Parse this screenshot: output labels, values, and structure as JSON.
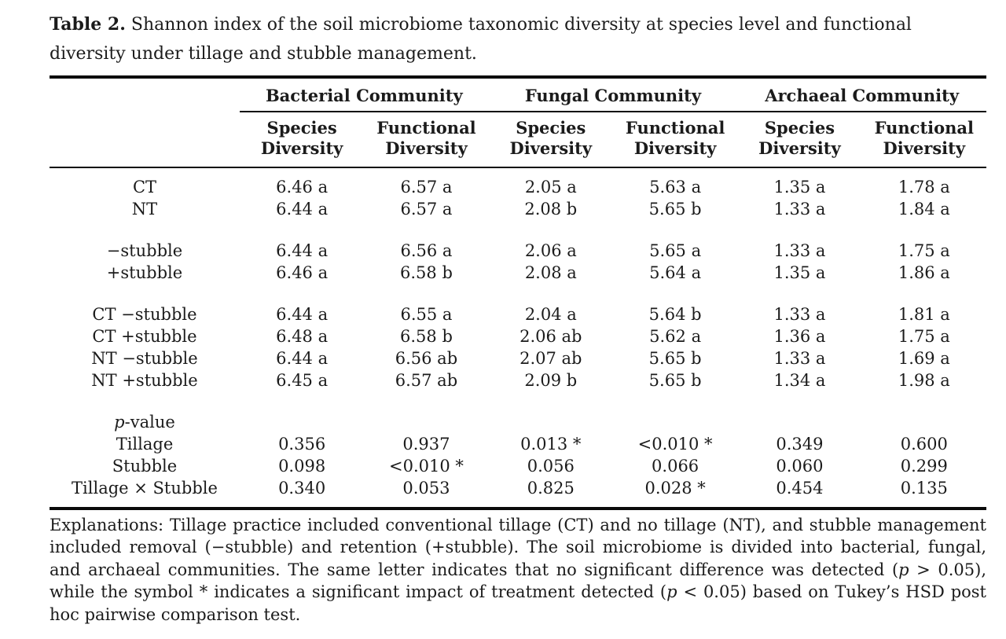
{
  "caption": {
    "label": "Table 2.",
    "text": " Shannon index of the soil microbiome taxonomic diversity at species level and functional diversity under tillage and stubble management."
  },
  "table": {
    "group_headers": [
      "Bacterial Community",
      "Fungal Community",
      "Archaeal Community"
    ],
    "column_headers": [
      {
        "line1": "Species",
        "line2": "Diversity"
      },
      {
        "line1": "Functional",
        "line2": "Diversity"
      },
      {
        "line1": "Species",
        "line2": "Diversity"
      },
      {
        "line1": "Functional",
        "line2": "Diversity"
      },
      {
        "line1": "Species",
        "line2": "Diversity"
      },
      {
        "line1": "Functional",
        "line2": "Diversity"
      }
    ],
    "sections": [
      {
        "rows": [
          {
            "label": "CT",
            "values": [
              "6.46 a",
              "6.57 a",
              "2.05 a",
              "5.63 a",
              "1.35 a",
              "1.78 a"
            ]
          },
          {
            "label": "NT",
            "values": [
              "6.44 a",
              "6.57 a",
              "2.08 b",
              "5.65 b",
              "1.33 a",
              "1.84 a"
            ]
          }
        ]
      },
      {
        "rows": [
          {
            "label": "−stubble",
            "values": [
              "6.44 a",
              "6.56 a",
              "2.06 a",
              "5.65 a",
              "1.33 a",
              "1.75 a"
            ]
          },
          {
            "label": "+stubble",
            "values": [
              "6.46 a",
              "6.58 b",
              "2.08 a",
              "5.64 a",
              "1.35 a",
              "1.86 a"
            ]
          }
        ]
      },
      {
        "rows": [
          {
            "label": "CT −stubble",
            "values": [
              "6.44 a",
              "6.55 a",
              "2.04 a",
              "5.64 b",
              "1.33 a",
              "1.81 a"
            ]
          },
          {
            "label": "CT +stubble",
            "values": [
              "6.48 a",
              "6.58 b",
              "2.06 ab",
              "5.62 a",
              "1.36 a",
              "1.75 a"
            ]
          },
          {
            "label": "NT −stubble",
            "values": [
              "6.44 a",
              "6.56 ab",
              "2.07 ab",
              "5.65 b",
              "1.33 a",
              "1.69 a"
            ]
          },
          {
            "label": "NT +stubble",
            "values": [
              "6.45 a",
              "6.57 ab",
              "2.09 b",
              "5.65 b",
              "1.34 a",
              "1.98 a"
            ]
          }
        ]
      },
      {
        "header_segments": [
          {
            "t": "p",
            "i": true
          },
          {
            "t": "-value",
            "i": false
          }
        ],
        "rows": [
          {
            "label": "Tillage",
            "values": [
              "0.356",
              "0.937",
              "0.013 *",
              "<0.010 *",
              "0.349",
              "0.600"
            ]
          },
          {
            "label": "Stubble",
            "values": [
              "0.098",
              "<0.010 *",
              "0.056",
              "0.066",
              "0.060",
              "0.299"
            ]
          },
          {
            "label": "Tillage × Stubble",
            "values": [
              "0.340",
              "0.053",
              "0.825",
              "0.028 *",
              "0.454",
              "0.135"
            ]
          }
        ]
      }
    ]
  },
  "footnote_segments": [
    {
      "t": "Explanations: Tillage practice included conventional tillage (CT) and no tillage (NT), and stubble management included removal (−stubble) and retention (+stubble). The soil microbiome is divided into bacterial, fungal, and archaeal communities. The same letter indicates that no significant difference was detected (",
      "i": false
    },
    {
      "t": "p",
      "i": true
    },
    {
      "t": " > 0.05), while the symbol * indicates a significant impact of treatment detected (",
      "i": false
    },
    {
      "t": "p",
      "i": true
    },
    {
      "t": " < 0.05) based on Tukey’s HSD post hoc pairwise comparison test.",
      "i": false
    }
  ]
}
